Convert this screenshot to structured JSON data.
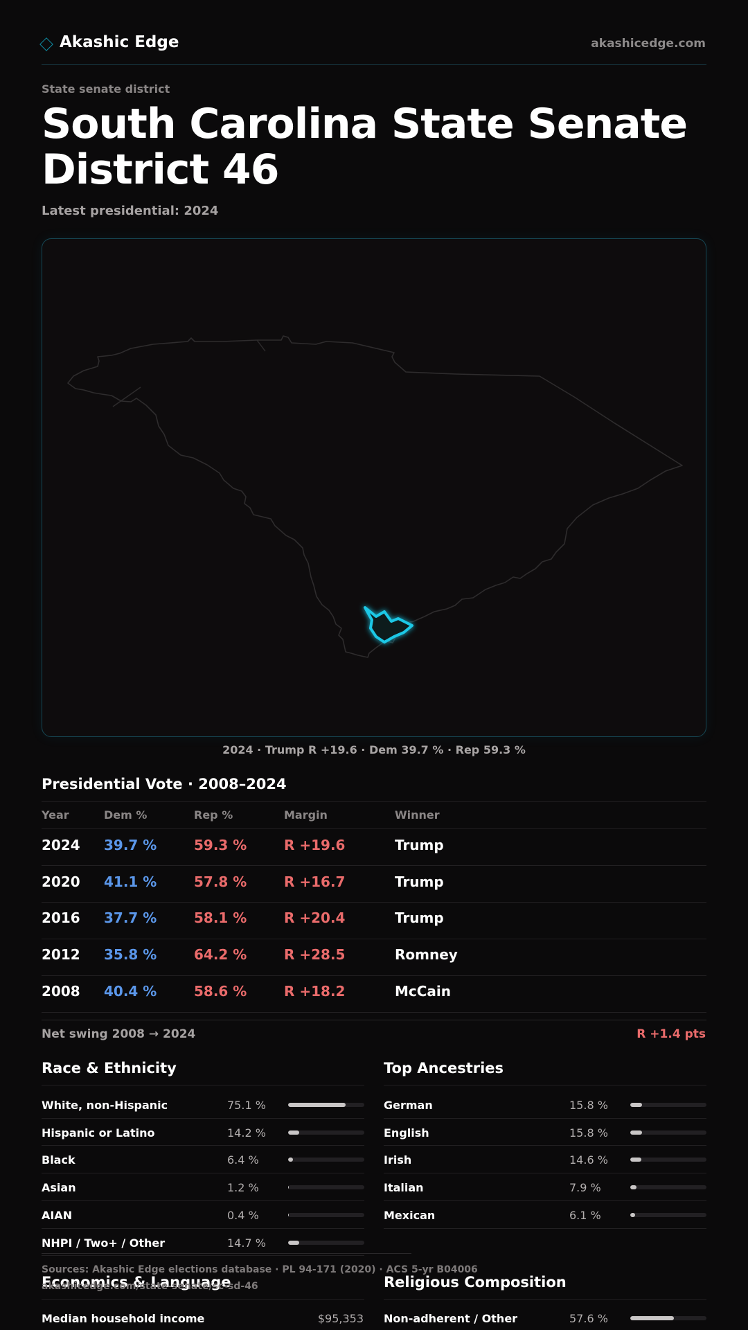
{
  "header": {
    "brand": "Akashic Edge",
    "site": "akashicedge.com"
  },
  "kicker": "State senate district",
  "title": "South Carolina State Senate District 46",
  "latest": "Latest presidential: 2024",
  "map": {
    "caption": "2024 · Trump R +19.6 · Dem 39.7 % · Rep 59.3 %",
    "highlight_color": "#1ec8e6"
  },
  "presidential": {
    "title": "Presidential Vote · 2008–2024",
    "headers": [
      "Year",
      "Dem %",
      "Rep %",
      "Margin",
      "Winner"
    ],
    "rows": [
      {
        "year": "2024",
        "dem": "39.7 %",
        "rep": "59.3 %",
        "margin": "R +19.6",
        "winner": "Trump"
      },
      {
        "year": "2020",
        "dem": "41.1 %",
        "rep": "57.8 %",
        "margin": "R +16.7",
        "winner": "Trump"
      },
      {
        "year": "2016",
        "dem": "37.7 %",
        "rep": "58.1 %",
        "margin": "R +20.4",
        "winner": "Trump"
      },
      {
        "year": "2012",
        "dem": "35.8 %",
        "rep": "64.2 %",
        "margin": "R +28.5",
        "winner": "Romney"
      },
      {
        "year": "2008",
        "dem": "40.4 %",
        "rep": "58.6 %",
        "margin": "R +18.2",
        "winner": "McCain"
      }
    ],
    "swing_label": "Net swing 2008 → 2024",
    "swing_value": "R +1.4 pts"
  },
  "race": {
    "title": "Race & Ethnicity",
    "items": [
      {
        "label": "White, non-Hispanic",
        "value": "75.1 %",
        "pct": 75.1
      },
      {
        "label": "Hispanic or Latino",
        "value": "14.2 %",
        "pct": 14.2
      },
      {
        "label": "Black",
        "value": "6.4 %",
        "pct": 6.4
      },
      {
        "label": "Asian",
        "value": "1.2 %",
        "pct": 1.2
      },
      {
        "label": "AIAN",
        "value": "0.4 %",
        "pct": 0.4
      },
      {
        "label": "NHPI / Two+ / Other",
        "value": "14.7 %",
        "pct": 14.7
      }
    ]
  },
  "ancestry": {
    "title": "Top Ancestries",
    "items": [
      {
        "label": "German",
        "value": "15.8 %",
        "pct": 15.8
      },
      {
        "label": "English",
        "value": "15.8 %",
        "pct": 15.8
      },
      {
        "label": "Irish",
        "value": "14.6 %",
        "pct": 14.6
      },
      {
        "label": "Italian",
        "value": "7.9 %",
        "pct": 7.9
      },
      {
        "label": "Mexican",
        "value": "6.1 %",
        "pct": 6.1
      }
    ]
  },
  "economics": {
    "title": "Economics & Language",
    "items": [
      {
        "label": "Median household income",
        "value": "$95,353"
      }
    ]
  },
  "religion": {
    "title": "Religious Composition",
    "items": [
      {
        "label": "Non-adherent / Other",
        "value": "57.6 %",
        "pct": 57.6
      }
    ]
  },
  "footer": {
    "sources": "Sources: Akashic Edge elections database · PL 94-171 (2020) · ACS 5-yr B04006",
    "url": "akashicedge.com/state-senate/sc-sd-46"
  }
}
